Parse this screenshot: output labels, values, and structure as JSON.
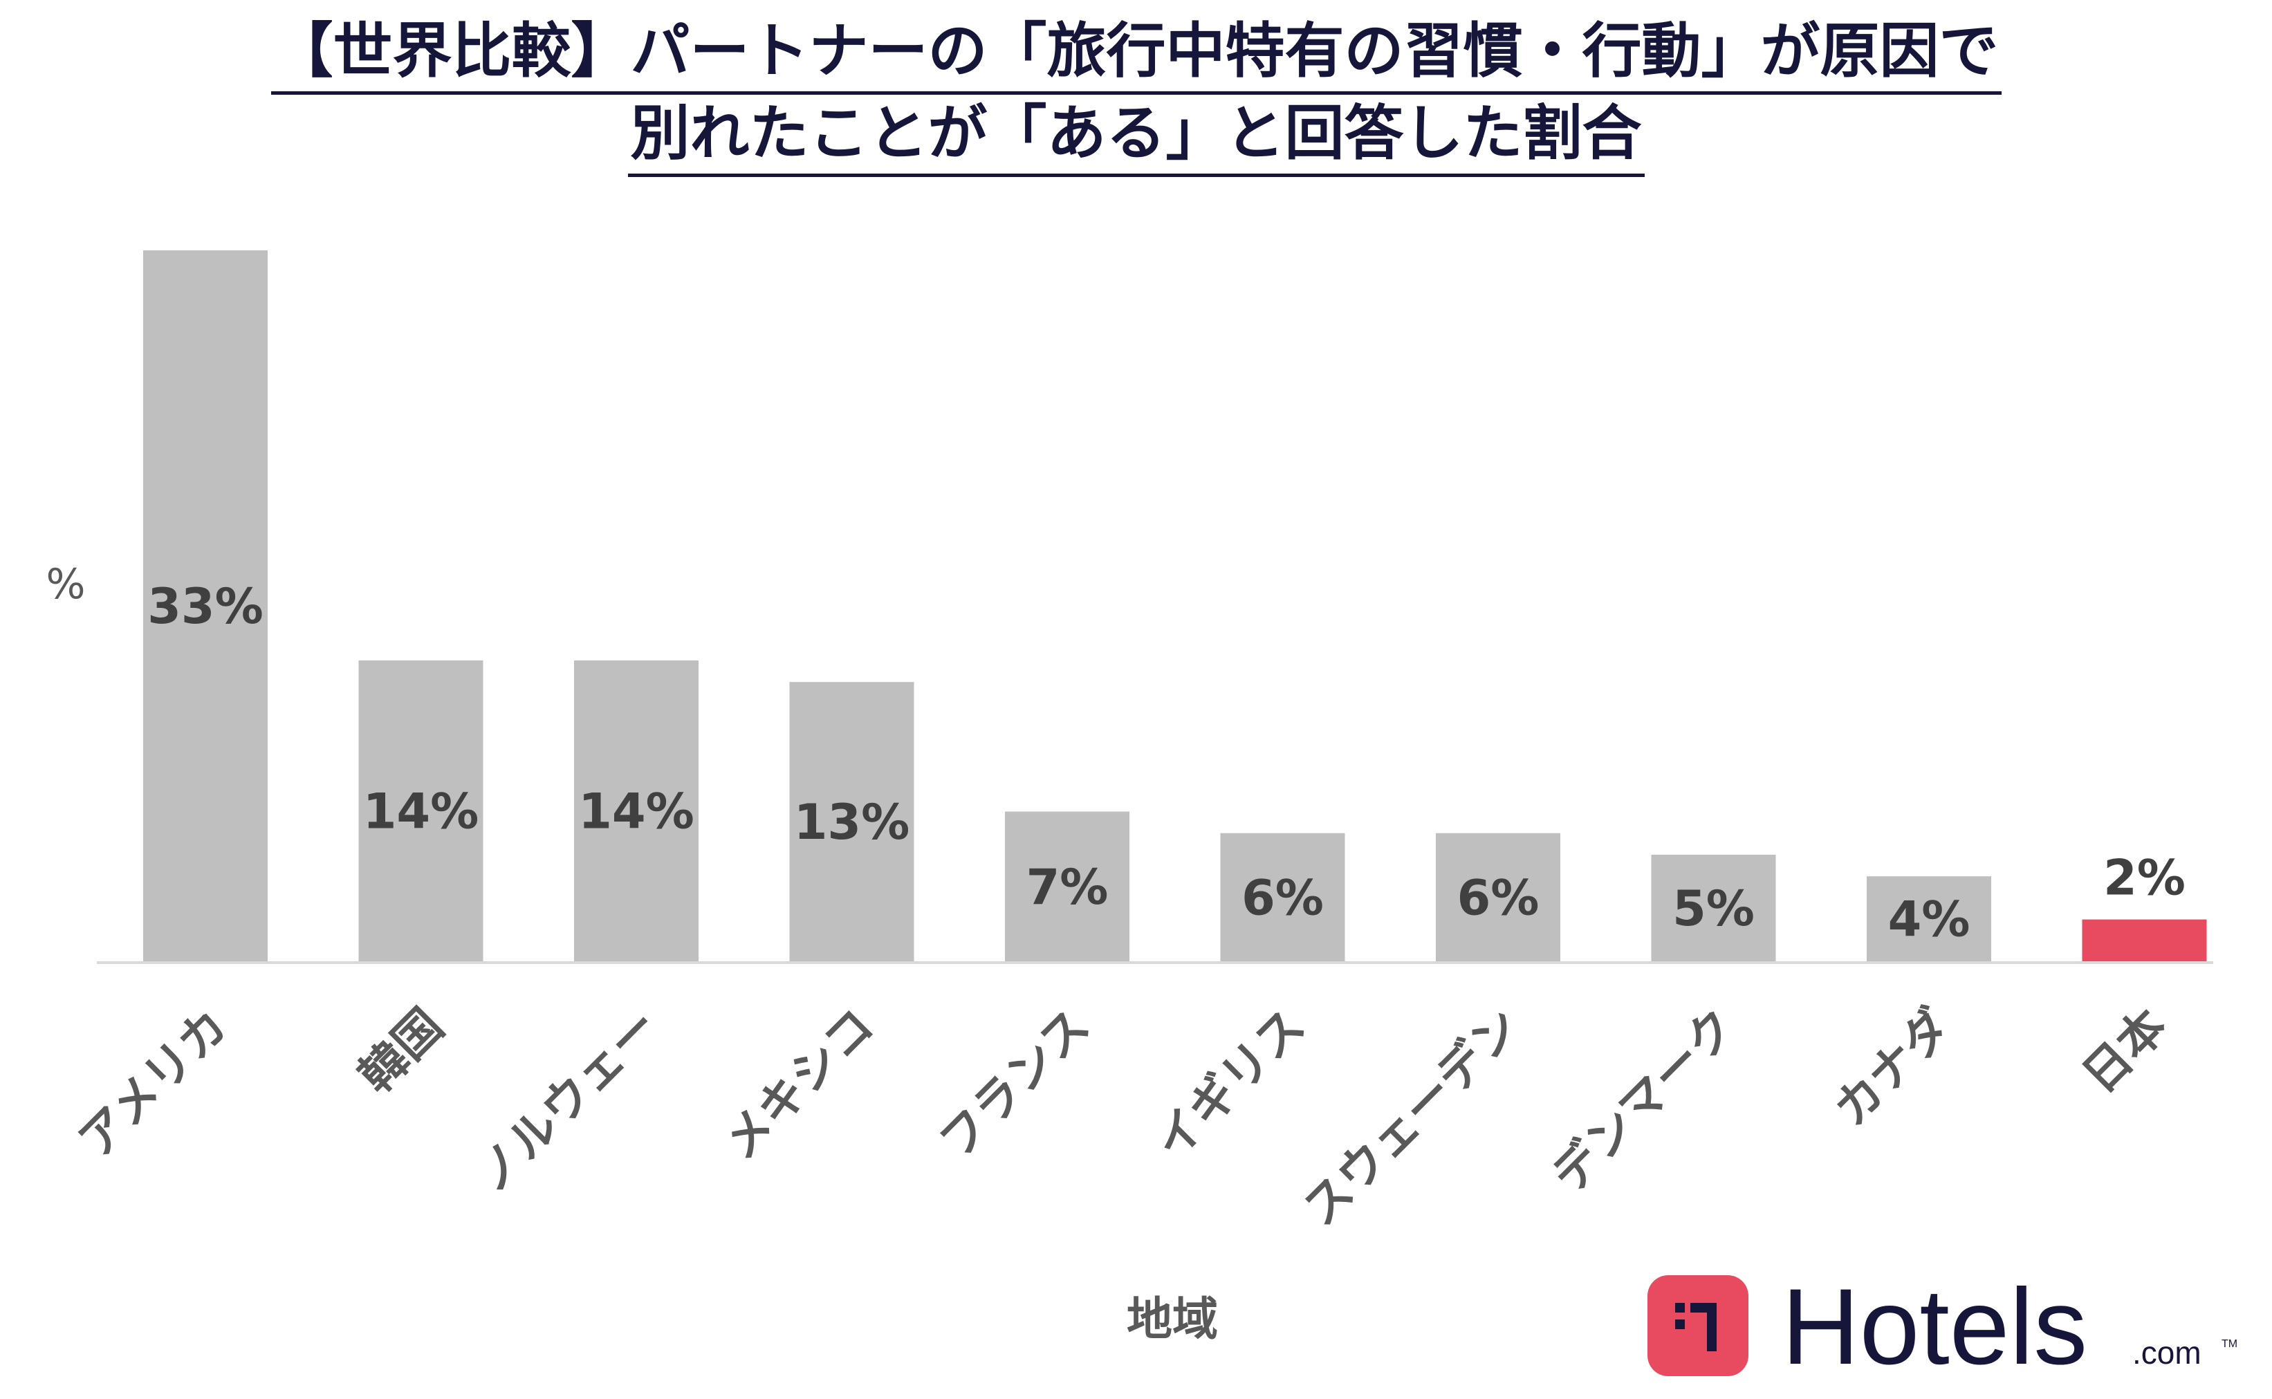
{
  "title_lines": [
    "【世界比較】パートナーの「旅行中特有の習慣・行動」が原因で",
    "別れたことが「ある」と回答した割合"
  ],
  "chart_data": {
    "type": "bar",
    "title": "【世界比較】パートナーの「旅行中特有の習慣・行動」が原因で別れたことが「ある」と回答した割合",
    "xlabel": "地域",
    "ylabel": "%",
    "categories": [
      "アメリカ",
      "韓国",
      "ノルウェー",
      "メキシコ",
      "フランス",
      "イギリス",
      "スウェーデン",
      "デンマーク",
      "カナダ",
      "日本"
    ],
    "values": [
      33,
      14,
      14,
      13,
      7,
      6,
      6,
      5,
      4,
      2
    ],
    "data_labels": [
      "33%",
      "14%",
      "14%",
      "13%",
      "7%",
      "6%",
      "6%",
      "5%",
      "4%",
      "2%"
    ],
    "ylim": [
      0,
      33
    ],
    "grid": false,
    "legend": "none",
    "colors": {
      "default": "#bfbfbf",
      "highlight": "#e84a5f",
      "highlight_category": "日本",
      "label": "#404040",
      "axis": "#d9d9d9"
    }
  },
  "logo": {
    "brand": "Hotels",
    "suffix": ".com",
    "tm": "TM",
    "icon": "hotels-logo-icon",
    "brand_color": "#e84a5f",
    "text_color": "#16163a"
  }
}
